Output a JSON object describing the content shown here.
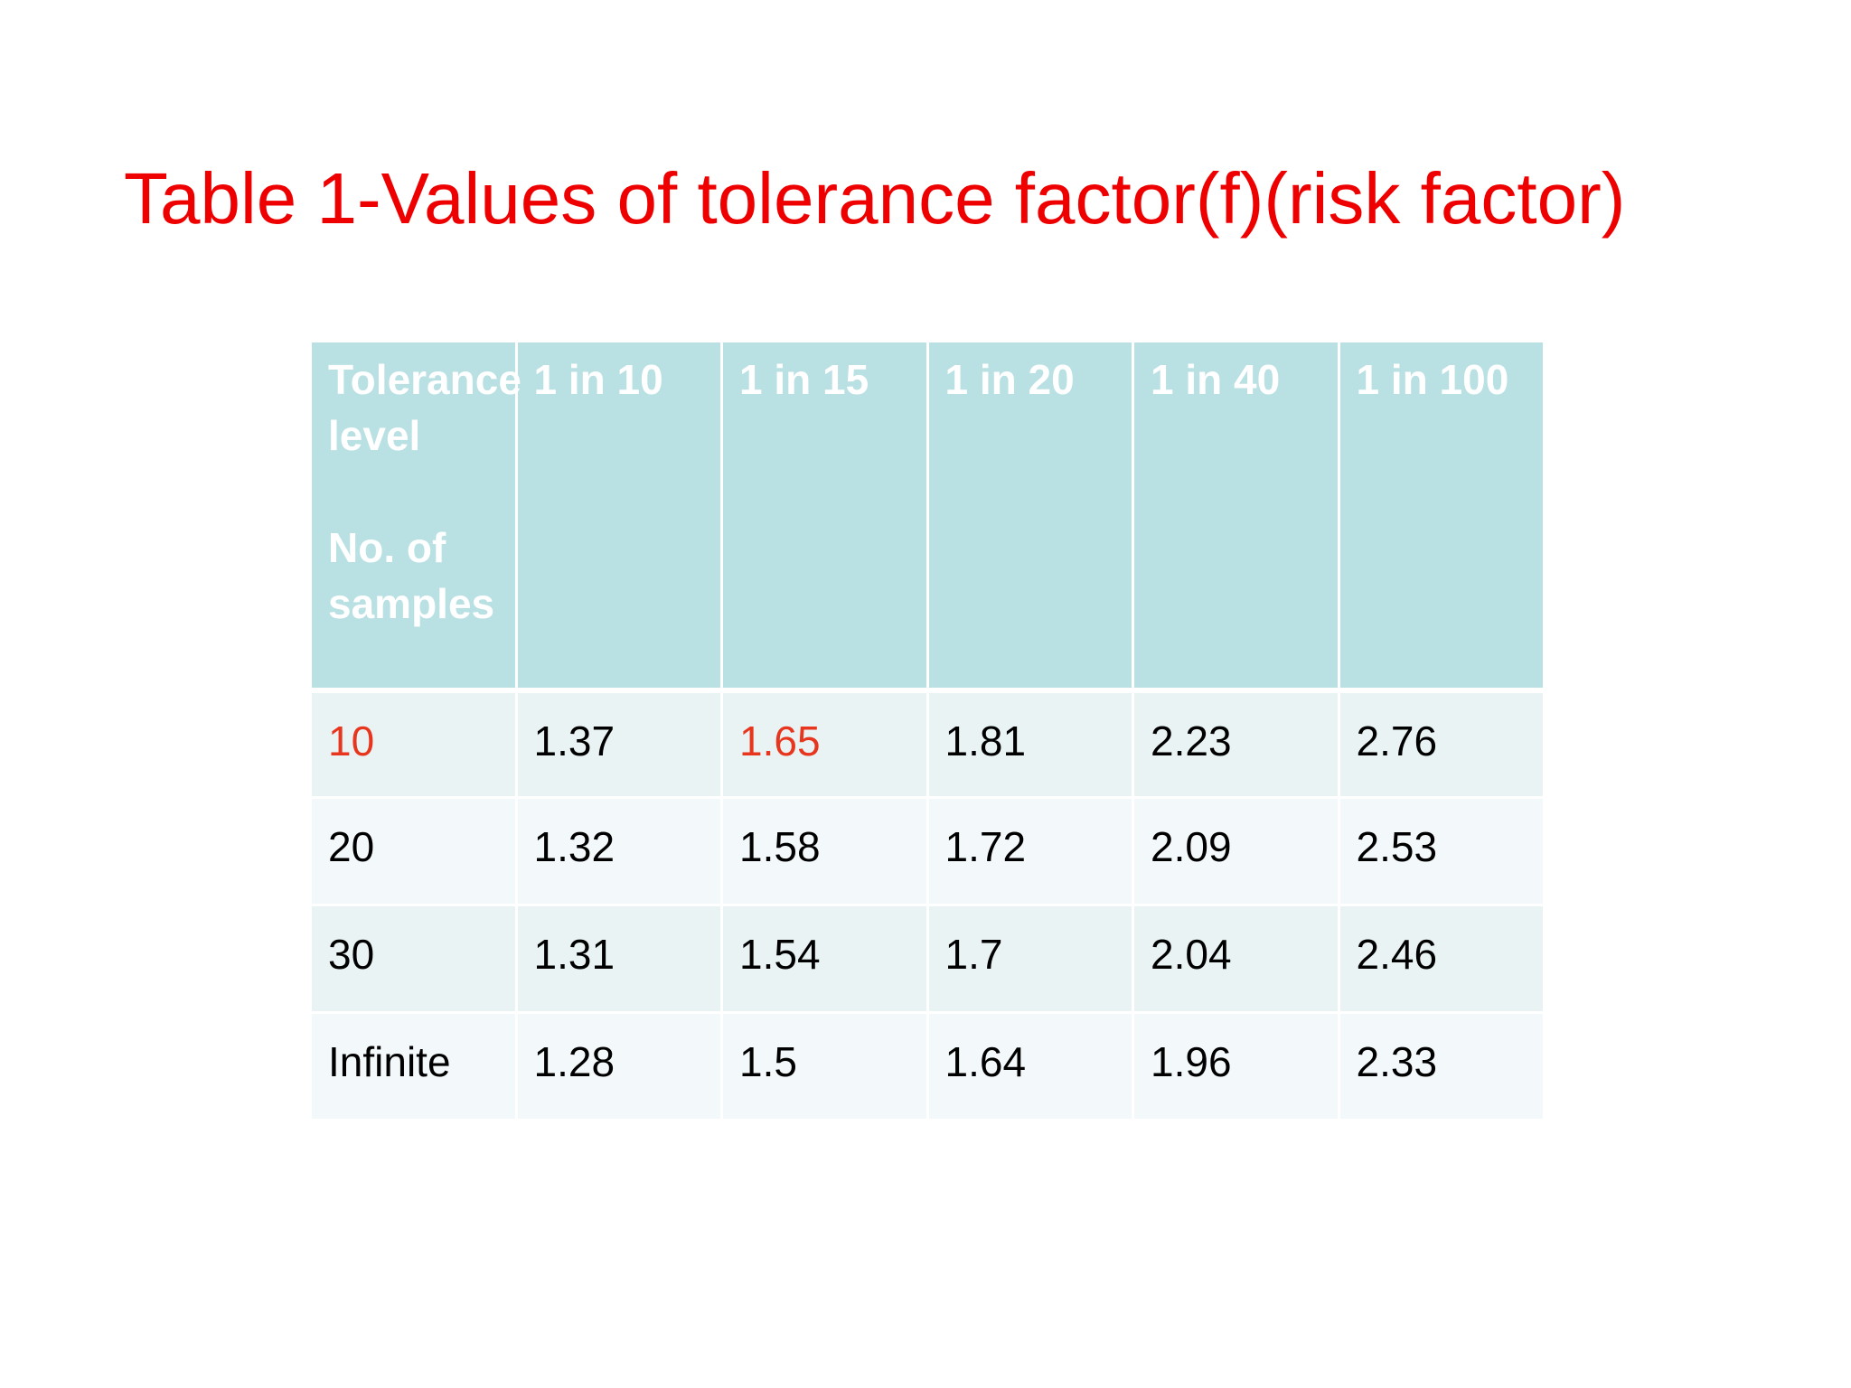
{
  "title": "Table 1-Values of tolerance factor(f)(risk factor)",
  "table": {
    "corner_label_line1": "Tolerance level",
    "corner_label_line2": "No. of samples",
    "columns": [
      "1 in 10",
      "1 in 15",
      "1 in 20",
      "1 in 40",
      "1 in 100"
    ],
    "rows": [
      {
        "label": "10",
        "values": [
          "1.37",
          "1.65",
          "1.81",
          "2.23",
          "2.76"
        ]
      },
      {
        "label": "20",
        "values": [
          "1.32",
          "1.58",
          "1.72",
          "2.09",
          "2.53"
        ]
      },
      {
        "label": "30",
        "values": [
          "1.31",
          "1.54",
          "1.7",
          "2.04",
          "2.46"
        ]
      },
      {
        "label": "Infinite",
        "values": [
          "1.28",
          "1.5",
          "1.64",
          "1.96",
          "2.33"
        ]
      }
    ]
  },
  "colors": {
    "title": "#ee0000",
    "header_background": "#b9e0e3",
    "header_text": "#ffffff",
    "row_band_1": "#e9f3f4",
    "row_band_2": "#f3f8fa",
    "highlight_text": "#e8351d"
  }
}
